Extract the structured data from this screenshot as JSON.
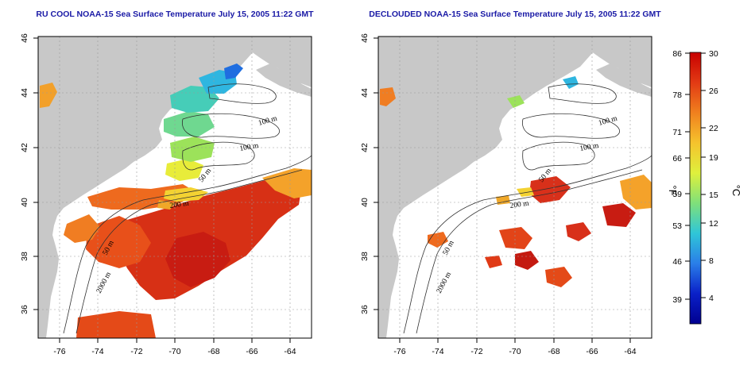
{
  "colors": {
    "land": "#c8c8c8",
    "ocean": "#ffffff",
    "title": "#1a1aa6",
    "grid": "#9a9a9a"
  },
  "panels": [
    {
      "title": "RU COOL NOAA-15 Sea Surface Temperature July 15, 2005 11:22 GMT",
      "contour_labels": [
        "100 m",
        "100 m",
        "50 m",
        "200 m",
        "50 m",
        "2000 m"
      ]
    },
    {
      "title": "DECLOUDED NOAA-15 Sea Surface Temperature July 15, 2005 11:22 GMT",
      "contour_labels": [
        "100 m",
        "100 m",
        "50 m",
        "200 m",
        "50 m",
        "2000 m"
      ]
    }
  ],
  "axes": {
    "lon_ticks": [
      "-76",
      "-74",
      "-72",
      "-70",
      "-68",
      "-66",
      "-64"
    ],
    "lat_ticks": [
      "36",
      "38",
      "40",
      "42",
      "44",
      "46"
    ]
  },
  "colorbar": {
    "unit_f": "°F",
    "unit_c": "°C",
    "f_ticks": [
      "86",
      "78",
      "71",
      "66",
      "59",
      "53",
      "46",
      "39"
    ],
    "c_ticks": [
      "30",
      "26",
      "22",
      "19",
      "15",
      "12",
      "8",
      "4"
    ],
    "gradient": [
      "#c80000",
      "#e23a14",
      "#f0801e",
      "#f5c32d",
      "#dff03c",
      "#7fe07a",
      "#2fc6d8",
      "#2a7ee8",
      "#0a20c8",
      "#000090"
    ]
  }
}
